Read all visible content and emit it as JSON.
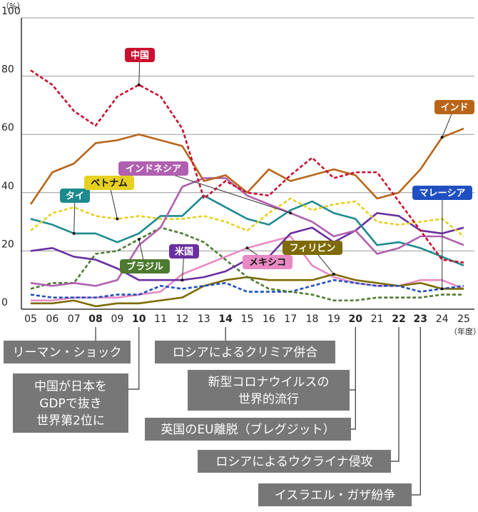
{
  "chart_data": {
    "type": "line",
    "y_unit": "（%）",
    "x_unit": "（年度）",
    "categories": [
      "05",
      "06",
      "07",
      "08",
      "09",
      "10",
      "11",
      "12",
      "13",
      "14",
      "15",
      "16",
      "17",
      "18",
      "19",
      "20",
      "21",
      "22",
      "23",
      "24",
      "25"
    ],
    "ylim": [
      0,
      100
    ],
    "yticks": [
      0,
      20,
      40,
      60,
      80,
      100
    ],
    "grid": true,
    "series": [
      {
        "name": "中国",
        "color": "#c8102e",
        "dashed": true,
        "values": [
          82,
          77,
          68,
          63,
          73,
          77,
          73,
          62,
          38,
          44,
          40,
          39,
          46,
          52,
          45,
          47,
          47,
          37,
          27,
          17,
          16
        ]
      },
      {
        "name": "インド",
        "color": "#b8651a",
        "dashed": false,
        "values": [
          36,
          47,
          50,
          57,
          58,
          60,
          58,
          56,
          44,
          46,
          40,
          48,
          44,
          46,
          48,
          46,
          38,
          40,
          48,
          59,
          62
        ]
      },
      {
        "name": "インドネシア",
        "color": "#b060b0",
        "dashed": false,
        "values": [
          9,
          8,
          9,
          8,
          10,
          22,
          28,
          42,
          45,
          45,
          39,
          36,
          33,
          30,
          25,
          27,
          19,
          21,
          25,
          25,
          22
        ]
      },
      {
        "name": "タイ",
        "color": "#1d8a8f",
        "dashed": false,
        "values": [
          31,
          29,
          26,
          26,
          23,
          26,
          32,
          32,
          39,
          35,
          31,
          29,
          34,
          37,
          33,
          31,
          22,
          23,
          21,
          18,
          15
        ]
      },
      {
        "name": "ベトナム",
        "color": "#e6d020",
        "dashed": true,
        "values": [
          27,
          33,
          35,
          32,
          31,
          32,
          31,
          31,
          32,
          30,
          27,
          33,
          38,
          34,
          36,
          37,
          30,
          29,
          30,
          31,
          25
        ]
      },
      {
        "name": "ブラジル",
        "color": "#4d7a30",
        "dashed": true,
        "values": [
          7,
          9,
          9,
          19,
          20,
          24,
          28,
          26,
          23,
          17,
          11,
          7,
          6,
          5,
          3,
          3,
          4,
          4,
          4,
          5,
          5
        ]
      },
      {
        "name": "米国",
        "color": "#6a2fa0",
        "dashed": false,
        "values": [
          20,
          21,
          18,
          17,
          14,
          10,
          10,
          10,
          11,
          13,
          17,
          18,
          26,
          28,
          23,
          27,
          33,
          32,
          27,
          26,
          28
        ]
      },
      {
        "name": "メキシコ",
        "color": "#e78ac3",
        "dashed": false,
        "values": [
          3,
          3,
          4,
          4,
          4,
          5,
          6,
          12,
          15,
          18,
          21,
          23,
          25,
          15,
          11,
          9,
          8,
          8,
          10,
          10,
          7
        ]
      },
      {
        "name": "フィリピン",
        "color": "#7d6a00",
        "dashed": false,
        "values": [
          2,
          2,
          3,
          1,
          2,
          2,
          3,
          4,
          8,
          10,
          11,
          10,
          10,
          10,
          12,
          10,
          9,
          8,
          9,
          7,
          7
        ]
      },
      {
        "name": "マレーシア",
        "color": "#1f4fc0",
        "dashed": true,
        "values": [
          5,
          4,
          4,
          4,
          5,
          5,
          8,
          7,
          8,
          9,
          6,
          6,
          6,
          8,
          10,
          9,
          8,
          8,
          6,
          7,
          8
        ]
      }
    ],
    "events": [
      {
        "category": "08",
        "text": [
          "リーマン・ショック"
        ]
      },
      {
        "category": "10",
        "text": [
          "中国が日本を",
          "GDPで抜き",
          "世界第2位に"
        ]
      },
      {
        "category": "14",
        "text": [
          "ロシアによるクリミア併合"
        ]
      },
      {
        "category": "20",
        "text": [
          "新型コロナウイルスの",
          "世界的流行"
        ]
      },
      {
        "category": "20",
        "text": [
          "英国のEU離脱（ブレグジット）"
        ]
      },
      {
        "category": "22",
        "text": [
          "ロシアによるウクライナ侵攻"
        ]
      },
      {
        "category": "23",
        "text": [
          "イスラエル・ガザ紛争"
        ]
      }
    ]
  }
}
